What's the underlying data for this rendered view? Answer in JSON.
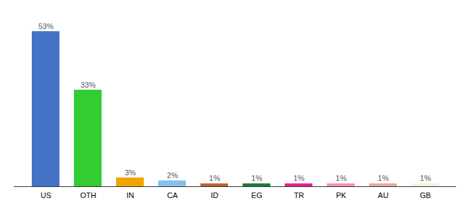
{
  "chart_data": {
    "type": "bar",
    "categories": [
      "US",
      "OTH",
      "IN",
      "CA",
      "ID",
      "EG",
      "TR",
      "PK",
      "AU",
      "GB"
    ],
    "values": [
      53,
      33,
      3,
      2,
      1,
      1,
      1,
      1,
      1,
      1
    ],
    "value_labels": [
      "53%",
      "33%",
      "3%",
      "2%",
      "1%",
      "1%",
      "1%",
      "1%",
      "1%",
      "1%"
    ],
    "colors": [
      "#4472C4",
      "#33CC33",
      "#F0A500",
      "#85C1E9",
      "#C0632A",
      "#1A7A3A",
      "#E91E8C",
      "#F48FB1",
      "#E8A898",
      "#F5F0DC"
    ],
    "ylim": [
      0,
      58
    ],
    "data_labels": true,
    "tick_labels": "x",
    "grid": false
  }
}
